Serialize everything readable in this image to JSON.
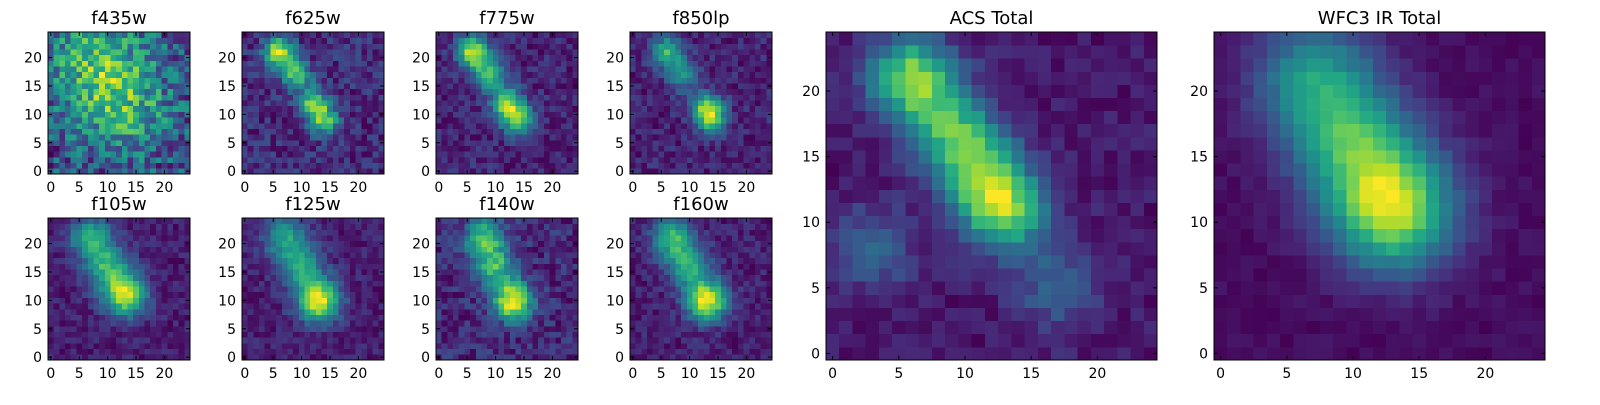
{
  "chart_data": [
    {
      "type": "heatmap",
      "title": "f435w",
      "xticks": [
        "0",
        "5",
        "10",
        "15",
        "20"
      ],
      "yticks": [
        "0",
        "5",
        "10",
        "15",
        "20"
      ],
      "xlim": [
        0,
        24
      ],
      "ylim": [
        0,
        24
      ],
      "grid_size": 25,
      "colormap": "viridis",
      "source": {
        "type": "gaussian",
        "sigma": 6.0,
        "peaks": [
          {
            "x": 7,
            "y": 21,
            "amplitude": 0.35
          },
          {
            "x": 11,
            "y": 15,
            "amplitude": 0.25
          },
          {
            "x": 13,
            "y": 10,
            "amplitude": 0.3
          }
        ],
        "noise": 0.28,
        "base": 0.45
      }
    },
    {
      "type": "heatmap",
      "title": "f625w",
      "xticks": [
        "0",
        "5",
        "10",
        "15",
        "20"
      ],
      "yticks": [
        "0",
        "5",
        "10",
        "15",
        "20"
      ],
      "xlim": [
        0,
        24
      ],
      "ylim": [
        0,
        24
      ],
      "grid_size": 25,
      "colormap": "viridis",
      "source": {
        "type": "gaussian",
        "sigma": 1.8,
        "peaks": [
          {
            "x": 6,
            "y": 21,
            "amplitude": 0.75
          },
          {
            "x": 9,
            "y": 17,
            "amplitude": 0.55
          },
          {
            "x": 12,
            "y": 12,
            "amplitude": 0.6
          },
          {
            "x": 14,
            "y": 9,
            "amplitude": 0.55
          }
        ],
        "noise": 0.12,
        "base": 0.22
      }
    },
    {
      "type": "heatmap",
      "title": "f775w",
      "xticks": [
        "0",
        "5",
        "10",
        "15",
        "20"
      ],
      "yticks": [
        "0",
        "5",
        "10",
        "15",
        "20"
      ],
      "xlim": [
        0,
        24
      ],
      "ylim": [
        0,
        24
      ],
      "grid_size": 25,
      "colormap": "viridis",
      "source": {
        "type": "gaussian",
        "sigma": 1.9,
        "peaks": [
          {
            "x": 6,
            "y": 21,
            "amplitude": 0.8
          },
          {
            "x": 9,
            "y": 17,
            "amplitude": 0.6
          },
          {
            "x": 12,
            "y": 12,
            "amplitude": 0.65
          },
          {
            "x": 14,
            "y": 9,
            "amplitude": 0.6
          }
        ],
        "noise": 0.1,
        "base": 0.22
      }
    },
    {
      "type": "heatmap",
      "title": "f850lp",
      "xticks": [
        "0",
        "5",
        "10",
        "15",
        "20"
      ],
      "yticks": [
        "0",
        "5",
        "10",
        "15",
        "20"
      ],
      "xlim": [
        0,
        24
      ],
      "ylim": [
        0,
        24
      ],
      "grid_size": 25,
      "colormap": "viridis",
      "source": {
        "type": "gaussian",
        "sigma": 1.9,
        "peaks": [
          {
            "x": 6,
            "y": 21,
            "amplitude": 0.7
          },
          {
            "x": 9,
            "y": 17,
            "amplitude": 0.5
          },
          {
            "x": 13,
            "y": 11,
            "amplitude": 0.7
          },
          {
            "x": 14,
            "y": 9,
            "amplitude": 0.5
          }
        ],
        "noise": 0.12,
        "base": 0.22
      }
    },
    {
      "type": "heatmap",
      "title": "ACS Total",
      "xticks": [
        "0",
        "5",
        "10",
        "15",
        "20"
      ],
      "yticks": [
        "0",
        "5",
        "10",
        "15",
        "20"
      ],
      "xlim": [
        0,
        24
      ],
      "ylim": [
        0,
        24
      ],
      "grid_size": 25,
      "colormap": "viridis",
      "source": {
        "type": "gaussian",
        "sigma": 2.2,
        "peaks": [
          {
            "x": 6,
            "y": 21,
            "amplitude": 0.9
          },
          {
            "x": 9,
            "y": 17,
            "amplitude": 0.6
          },
          {
            "x": 11,
            "y": 14,
            "amplitude": 0.6
          },
          {
            "x": 13,
            "y": 11,
            "amplitude": 0.85
          },
          {
            "x": 3,
            "y": 8,
            "amplitude": 0.3
          },
          {
            "x": 17,
            "y": 5,
            "amplitude": 0.3
          }
        ],
        "noise": 0.08,
        "base": 0.2
      }
    },
    {
      "type": "heatmap",
      "title": "f105w",
      "xticks": [
        "0",
        "5",
        "10",
        "15",
        "20"
      ],
      "yticks": [
        "0",
        "5",
        "10",
        "15",
        "20"
      ],
      "xlim": [
        0,
        24
      ],
      "ylim": [
        0,
        24
      ],
      "grid_size": 25,
      "colormap": "viridis",
      "source": {
        "type": "gaussian",
        "sigma": 2.6,
        "peaks": [
          {
            "x": 7,
            "y": 21,
            "amplitude": 0.5
          },
          {
            "x": 10,
            "y": 16,
            "amplitude": 0.5
          },
          {
            "x": 13,
            "y": 11,
            "amplitude": 0.8
          }
        ],
        "noise": 0.08,
        "base": 0.22
      }
    },
    {
      "type": "heatmap",
      "title": "f125w",
      "xticks": [
        "0",
        "5",
        "10",
        "15",
        "20"
      ],
      "yticks": [
        "0",
        "5",
        "10",
        "15",
        "20"
      ],
      "xlim": [
        0,
        24
      ],
      "ylim": [
        0,
        24
      ],
      "grid_size": 25,
      "colormap": "viridis",
      "source": {
        "type": "gaussian",
        "sigma": 2.6,
        "peaks": [
          {
            "x": 7,
            "y": 21,
            "amplitude": 0.45
          },
          {
            "x": 10,
            "y": 16,
            "amplitude": 0.45
          },
          {
            "x": 13,
            "y": 10,
            "amplitude": 0.85
          }
        ],
        "noise": 0.08,
        "base": 0.22
      }
    },
    {
      "type": "heatmap",
      "title": "f140w",
      "xticks": [
        "0",
        "5",
        "10",
        "15",
        "20"
      ],
      "yticks": [
        "0",
        "5",
        "10",
        "15",
        "20"
      ],
      "xlim": [
        0,
        24
      ],
      "ylim": [
        0,
        24
      ],
      "grid_size": 25,
      "colormap": "viridis",
      "source": {
        "type": "gaussian",
        "sigma": 2.4,
        "peaks": [
          {
            "x": 8,
            "y": 21,
            "amplitude": 0.5
          },
          {
            "x": 10,
            "y": 16,
            "amplitude": 0.45
          },
          {
            "x": 13,
            "y": 10,
            "amplitude": 0.75
          }
        ],
        "noise": 0.1,
        "base": 0.25
      }
    },
    {
      "type": "heatmap",
      "title": "f160w",
      "xticks": [
        "0",
        "5",
        "10",
        "15",
        "20"
      ],
      "yticks": [
        "0",
        "5",
        "10",
        "15",
        "20"
      ],
      "xlim": [
        0,
        24
      ],
      "ylim": [
        0,
        24
      ],
      "grid_size": 25,
      "colormap": "viridis",
      "source": {
        "type": "gaussian",
        "sigma": 2.5,
        "peaks": [
          {
            "x": 7,
            "y": 21,
            "amplitude": 0.55
          },
          {
            "x": 10,
            "y": 16,
            "amplitude": 0.5
          },
          {
            "x": 13,
            "y": 10,
            "amplitude": 0.85
          }
        ],
        "noise": 0.08,
        "base": 0.2
      }
    },
    {
      "type": "heatmap",
      "title": "WFC3 IR Total",
      "xticks": [
        "0",
        "5",
        "10",
        "15",
        "20"
      ],
      "yticks": [
        "0",
        "5",
        "10",
        "15",
        "20"
      ],
      "xlim": [
        0,
        24
      ],
      "ylim": [
        0,
        24
      ],
      "grid_size": 25,
      "colormap": "viridis",
      "source": {
        "type": "gaussian",
        "sigma": 3.2,
        "peaks": [
          {
            "x": 7,
            "y": 21,
            "amplitude": 0.55
          },
          {
            "x": 10,
            "y": 16,
            "amplitude": 0.6
          },
          {
            "x": 13,
            "y": 11,
            "amplitude": 1.0
          }
        ],
        "noise": 0.04,
        "base": 0.1
      }
    }
  ]
}
